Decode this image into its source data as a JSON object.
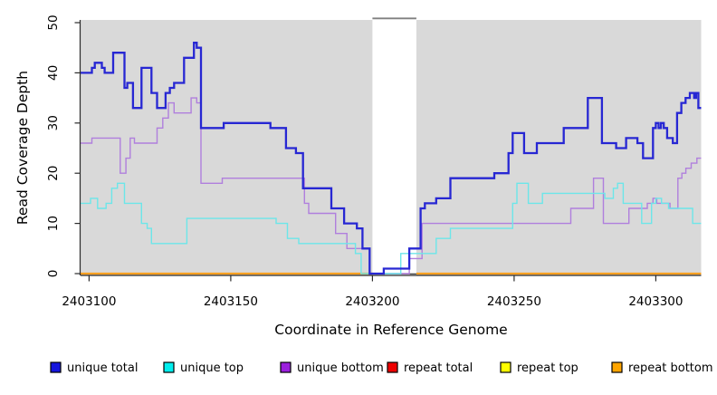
{
  "chart_data": {
    "type": "step-line",
    "title": "",
    "xlabel": "Coordinate in Reference Genome",
    "ylabel": "Read Coverage Depth",
    "x_range": [
      2403097,
      2403316
    ],
    "y_range": [
      0,
      50
    ],
    "x_ticks": [
      2403100,
      2403150,
      2403200,
      2403250,
      2403300
    ],
    "y_ticks": [
      0,
      10,
      20,
      30,
      40,
      50
    ],
    "plot_bg": "#d9d9d9",
    "grid": false,
    "legend_position": "bottom",
    "gap_band": {
      "x_start": 2403200,
      "x_end": 2403215.5,
      "fill": "#ffffff",
      "border": "#808080",
      "bottom_line": "#333333"
    },
    "series": [
      {
        "name": "repeat total",
        "color": "#dd2222",
        "width": 1.4,
        "layer": "under",
        "points": [
          [
            2403097,
            0
          ]
        ]
      },
      {
        "name": "repeat top",
        "color": "#eeee00",
        "width": 1.4,
        "layer": "under",
        "points": [
          [
            2403097,
            0
          ]
        ]
      },
      {
        "name": "repeat bottom",
        "color": "#ffa020",
        "width": 2.2,
        "layer": "under",
        "points": [
          [
            2403097,
            0
          ]
        ]
      },
      {
        "name": "unique bottom",
        "color": "#b07fdd",
        "width": 1.4,
        "layer": "over",
        "points": [
          [
            2403097,
            26
          ],
          [
            2403101,
            27
          ],
          [
            2403111,
            20
          ],
          [
            2403113,
            23
          ],
          [
            2403114.5,
            27
          ],
          [
            2403116,
            26
          ],
          [
            2403124,
            29
          ],
          [
            2403126,
            31
          ],
          [
            2403128,
            34
          ],
          [
            2403130,
            32
          ],
          [
            2403136,
            35
          ],
          [
            2403138,
            34
          ],
          [
            2403139.5,
            18
          ],
          [
            2403147,
            19
          ],
          [
            2403176,
            14
          ],
          [
            2403177.5,
            12
          ],
          [
            2403187,
            8
          ],
          [
            2403191,
            5
          ],
          [
            2403199,
            0
          ],
          [
            2403213,
            3
          ],
          [
            2403217.5,
            10
          ],
          [
            2403270,
            13
          ],
          [
            2403278,
            19
          ],
          [
            2403281.5,
            10
          ],
          [
            2403290.5,
            13
          ],
          [
            2403297,
            14
          ],
          [
            2403299,
            15
          ],
          [
            2403300.3,
            14
          ],
          [
            2403305,
            13
          ],
          [
            2403307.8,
            19
          ],
          [
            2403309.2,
            20
          ],
          [
            2403310.6,
            21
          ],
          [
            2403312.5,
            22
          ],
          [
            2403314.5,
            23
          ]
        ]
      },
      {
        "name": "unique top",
        "color": "#6ce6e9",
        "width": 1.4,
        "layer": "over",
        "points": [
          [
            2403097,
            14
          ],
          [
            2403100.5,
            15
          ],
          [
            2403103,
            13
          ],
          [
            2403106,
            14
          ],
          [
            2403108,
            17
          ],
          [
            2403110,
            18
          ],
          [
            2403112.5,
            14
          ],
          [
            2403118.5,
            10
          ],
          [
            2403120.5,
            9
          ],
          [
            2403122,
            6
          ],
          [
            2403134.5,
            11
          ],
          [
            2403166,
            10
          ],
          [
            2403170,
            7
          ],
          [
            2403174,
            6
          ],
          [
            2403194,
            4
          ],
          [
            2403196,
            0
          ],
          [
            2403210,
            4
          ],
          [
            2403222.5,
            7
          ],
          [
            2403227.5,
            9
          ],
          [
            2403249.5,
            14
          ],
          [
            2403251,
            18
          ],
          [
            2403255,
            14
          ],
          [
            2403260,
            16
          ],
          [
            2403282,
            15
          ],
          [
            2403285,
            17
          ],
          [
            2403286.5,
            18
          ],
          [
            2403288.5,
            14
          ],
          [
            2403295,
            10
          ],
          [
            2403298.5,
            14
          ],
          [
            2403300,
            15
          ],
          [
            2403302,
            14
          ],
          [
            2403304.5,
            13
          ],
          [
            2403313,
            10
          ]
        ]
      },
      {
        "name": "unique total",
        "color": "#2727d3",
        "width": 2.3,
        "layer": "over",
        "points": [
          [
            2403097,
            40
          ],
          [
            2403101,
            41
          ],
          [
            2403102,
            42
          ],
          [
            2403104.5,
            41
          ],
          [
            2403105.5,
            40
          ],
          [
            2403108.5,
            44
          ],
          [
            2403112.5,
            37
          ],
          [
            2403113.5,
            38
          ],
          [
            2403115.5,
            33
          ],
          [
            2403118.5,
            41
          ],
          [
            2403122,
            36
          ],
          [
            2403124,
            33
          ],
          [
            2403127,
            36
          ],
          [
            2403128.5,
            37
          ],
          [
            2403130,
            38
          ],
          [
            2403133.5,
            43
          ],
          [
            2403137,
            46
          ],
          [
            2403138,
            45
          ],
          [
            2403139.5,
            29
          ],
          [
            2403147.5,
            30
          ],
          [
            2403164,
            29
          ],
          [
            2403169.5,
            25
          ],
          [
            2403173,
            24
          ],
          [
            2403175.5,
            17
          ],
          [
            2403185.5,
            13
          ],
          [
            2403190,
            10
          ],
          [
            2403194.5,
            9
          ],
          [
            2403196.5,
            5
          ],
          [
            2403199,
            0
          ],
          [
            2403204,
            1
          ],
          [
            2403213,
            5
          ],
          [
            2403217,
            13
          ],
          [
            2403218.5,
            14
          ],
          [
            2403222.5,
            15
          ],
          [
            2403227.5,
            19
          ],
          [
            2403243,
            20
          ],
          [
            2403248,
            24
          ],
          [
            2403249.5,
            28
          ],
          [
            2403253.5,
            24
          ],
          [
            2403258,
            26
          ],
          [
            2403267.5,
            29
          ],
          [
            2403276,
            35
          ],
          [
            2403281,
            26
          ],
          [
            2403286,
            25
          ],
          [
            2403289.5,
            27
          ],
          [
            2403293.5,
            26
          ],
          [
            2403295.5,
            23
          ],
          [
            2403299,
            29
          ],
          [
            2403300,
            30
          ],
          [
            2403301,
            29
          ],
          [
            2403301.8,
            30
          ],
          [
            2403302.8,
            29
          ],
          [
            2403304,
            27
          ],
          [
            2403306,
            26
          ],
          [
            2403307.5,
            32
          ],
          [
            2403309,
            34
          ],
          [
            2403310.5,
            35
          ],
          [
            2403312,
            36
          ],
          [
            2403313.5,
            35
          ],
          [
            2403314.2,
            36
          ],
          [
            2403315,
            33
          ]
        ]
      }
    ]
  },
  "legend": {
    "items": [
      {
        "label": "unique total",
        "fill": "#1515dd"
      },
      {
        "label": "unique top",
        "fill": "#00eeee"
      },
      {
        "label": "unique bottom",
        "fill": "#9b20dd"
      },
      {
        "label": "repeat total",
        "fill": "#ee0000"
      },
      {
        "label": "repeat top",
        "fill": "#ffff00"
      },
      {
        "label": "repeat bottom",
        "fill": "#ffa500"
      }
    ]
  }
}
